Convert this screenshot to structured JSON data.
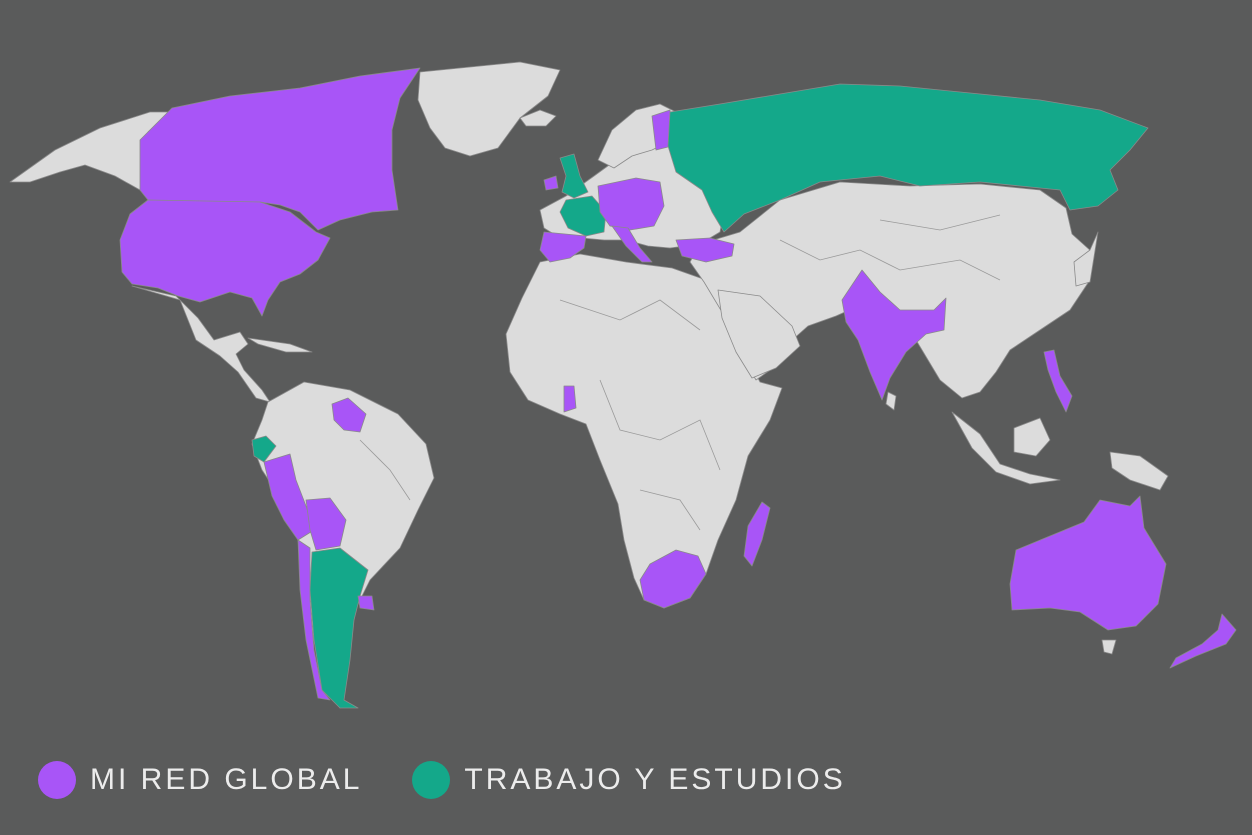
{
  "colors": {
    "ocean": "#5a5b5b",
    "land": "#dcdcdc",
    "border": "#8a8a8a",
    "network": "#a855f7",
    "work": "#14a88a"
  },
  "legend": [
    {
      "label": "MI RED GLOBAL",
      "category": "network"
    },
    {
      "label": "TRABAJO Y ESTUDIOS",
      "category": "work"
    }
  ],
  "regions": {
    "network": [
      "Canada",
      "United States",
      "Ireland",
      "Spain",
      "Germany",
      "Poland",
      "Czech Republic",
      "Austria",
      "Hungary",
      "Romania",
      "Finland",
      "Italy",
      "Turkey",
      "India",
      "Bangladesh",
      "Philippines",
      "Ghana",
      "Madagascar",
      "South Africa",
      "Australia",
      "New Zealand",
      "Peru",
      "Bolivia",
      "Colombia",
      "Suriname",
      "Guyana",
      "Uruguay",
      "Chile"
    ],
    "work": [
      "United Kingdom",
      "France",
      "Russia",
      "Ecuador",
      "Argentina"
    ]
  }
}
